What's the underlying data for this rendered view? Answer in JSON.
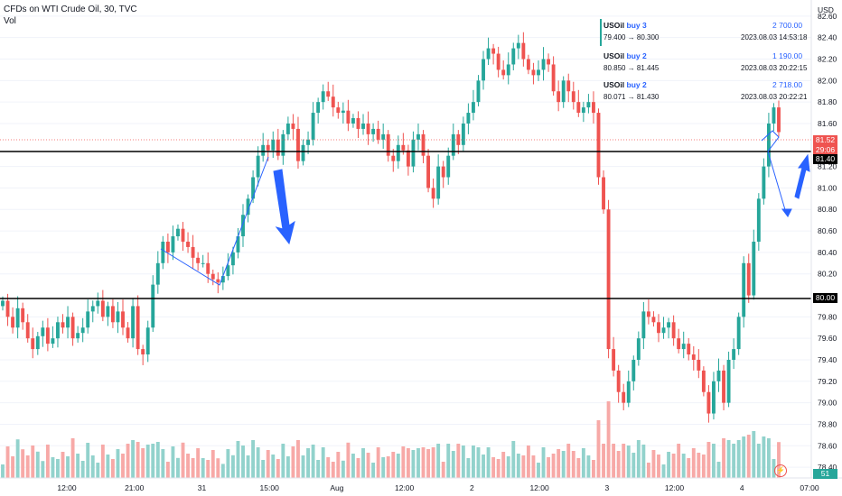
{
  "header": {
    "title": "CFDs on WTI Crude Oil, 30, TVC",
    "indicator": "Vol"
  },
  "currency": "USD",
  "trades": [
    {
      "symbol": "USOil",
      "side": "buy 3",
      "amount": "2 700.00",
      "range": "79.400 → 80.300",
      "time": "2023.08.03 14:53:18"
    },
    {
      "symbol": "USOil",
      "side": "buy 2",
      "amount": "1 190.00",
      "range": "80.850 → 81.445",
      "time": "2023.08.03 20:22:15"
    },
    {
      "symbol": "USOil",
      "side": "buy 2",
      "amount": "2 718.00",
      "range": "80.071 → 81.430",
      "time": "2023.08.03 20:22:21"
    }
  ],
  "price_tags": {
    "last": "81.52",
    "countdown": "29:06",
    "level_upper": "81.40",
    "level_lower": "80.00",
    "volume": "51"
  },
  "colors": {
    "up": "#26a69a",
    "down": "#ef5350",
    "up_vol": "#92d2cc",
    "down_vol": "#f7a9a7",
    "arrow": "#2962ff",
    "level": "#000000"
  },
  "chart_data": {
    "type": "candlestick",
    "y_ticks": [
      "82.60",
      "82.40",
      "82.20",
      "82.00",
      "81.80",
      "81.60",
      "81.20",
      "81.00",
      "80.80",
      "80.60",
      "80.40",
      "80.20",
      "79.80",
      "79.60",
      "79.40",
      "79.20",
      "79.00",
      "78.80",
      "78.60",
      "78.40"
    ],
    "x_ticks": [
      "12:00",
      "21:00",
      "31",
      "15:00",
      "Aug",
      "12:00",
      "2",
      "12:00",
      "3",
      "12:00",
      "4",
      "07:00"
    ],
    "ylim": [
      78.3,
      82.75
    ],
    "horizontal_levels": [
      81.4,
      80.0
    ],
    "last_price": 81.52,
    "closes": [
      79.95,
      79.8,
      79.7,
      79.88,
      79.75,
      79.6,
      79.5,
      79.62,
      79.7,
      79.55,
      79.6,
      79.75,
      79.7,
      79.8,
      79.6,
      79.65,
      79.7,
      79.85,
      79.9,
      79.95,
      79.8,
      79.9,
      79.75,
      79.85,
      79.7,
      79.6,
      79.9,
      79.5,
      79.45,
      79.7,
      80.1,
      80.3,
      80.5,
      80.4,
      80.55,
      80.62,
      80.5,
      80.45,
      80.35,
      80.3,
      80.3,
      80.2,
      80.15,
      80.12,
      80.18,
      80.28,
      80.4,
      80.55,
      80.75,
      80.9,
      81.1,
      81.3,
      81.4,
      81.35,
      81.45,
      81.3,
      81.5,
      81.6,
      81.55,
      81.25,
      81.4,
      81.45,
      81.7,
      81.8,
      81.9,
      81.85,
      81.75,
      81.7,
      81.72,
      81.6,
      81.65,
      81.55,
      81.6,
      81.5,
      81.55,
      81.45,
      81.5,
      81.3,
      81.25,
      81.4,
      81.35,
      81.2,
      81.45,
      81.5,
      81.3,
      81.0,
      80.9,
      81.2,
      81.1,
      81.3,
      81.5,
      81.4,
      81.6,
      81.7,
      81.8,
      82.0,
      82.2,
      82.3,
      82.25,
      82.1,
      82.05,
      82.15,
      82.3,
      82.35,
      82.2,
      82.1,
      82.05,
      82.1,
      82.2,
      82.15,
      81.9,
      81.8,
      82.0,
      81.9,
      81.8,
      81.7,
      81.75,
      81.8,
      81.7,
      81.1,
      80.8,
      79.5,
      79.3,
      79.1,
      79.0,
      79.2,
      79.4,
      79.6,
      79.85,
      79.8,
      79.75,
      79.65,
      79.7,
      79.75,
      79.6,
      79.5,
      79.55,
      79.45,
      79.4,
      79.3,
      79.1,
      78.9,
      79.2,
      79.3,
      79.0,
      79.4,
      79.5,
      79.8,
      80.3,
      80.0,
      80.5,
      80.9,
      81.2,
      81.6,
      81.75,
      81.52
    ]
  }
}
